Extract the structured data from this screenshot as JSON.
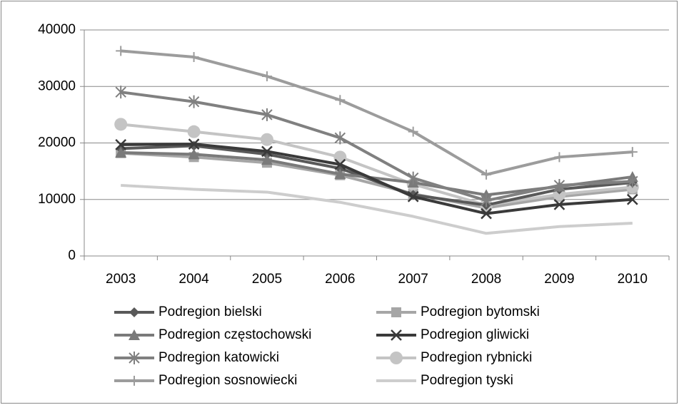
{
  "chart_data": {
    "type": "line",
    "categories": [
      "2003",
      "2004",
      "2005",
      "2006",
      "2007",
      "2008",
      "2009",
      "2010"
    ],
    "ylim": [
      0,
      40000
    ],
    "yticks": [
      0,
      10000,
      20000,
      30000,
      40000
    ],
    "grid": true,
    "series": [
      {
        "name": "Podregion bielski",
        "color": "#595959",
        "marker": "diamond",
        "values": [
          19000,
          19500,
          18000,
          15500,
          10800,
          9000,
          11800,
          13000
        ]
      },
      {
        "name": "Podregion bytomski",
        "color": "#a6a6a6",
        "marker": "square",
        "values": [
          18200,
          17500,
          16500,
          14300,
          11000,
          8500,
          10500,
          11800
        ]
      },
      {
        "name": "Podregion częstochowski",
        "color": "#7a7a7a",
        "marker": "triangle",
        "values": [
          18300,
          18000,
          17000,
          14500,
          13000,
          10800,
          12300,
          14000
        ]
      },
      {
        "name": "Podregion gliwicki",
        "color": "#3a3a3a",
        "marker": "x",
        "values": [
          19700,
          19800,
          18500,
          16200,
          10500,
          7500,
          9100,
          10000
        ]
      },
      {
        "name": "Podregion katowicki",
        "color": "#808080",
        "marker": "asterisk",
        "values": [
          29000,
          27300,
          25000,
          20900,
          13800,
          9800,
          12500,
          13200
        ]
      },
      {
        "name": "Podregion rybnicki",
        "color": "#c4c4c4",
        "marker": "circle",
        "values": [
          23300,
          22000,
          20600,
          17500,
          12700,
          9000,
          10900,
          12200
        ]
      },
      {
        "name": "Podregion sosnowiecki",
        "color": "#9c9c9c",
        "marker": "plus",
        "values": [
          36300,
          35200,
          31800,
          27600,
          22000,
          14400,
          17500,
          18400
        ]
      },
      {
        "name": "Podregion tyski",
        "color": "#cdcdcd",
        "marker": "none",
        "values": [
          12500,
          11800,
          11300,
          9500,
          7000,
          4000,
          5200,
          5800
        ]
      }
    ]
  }
}
